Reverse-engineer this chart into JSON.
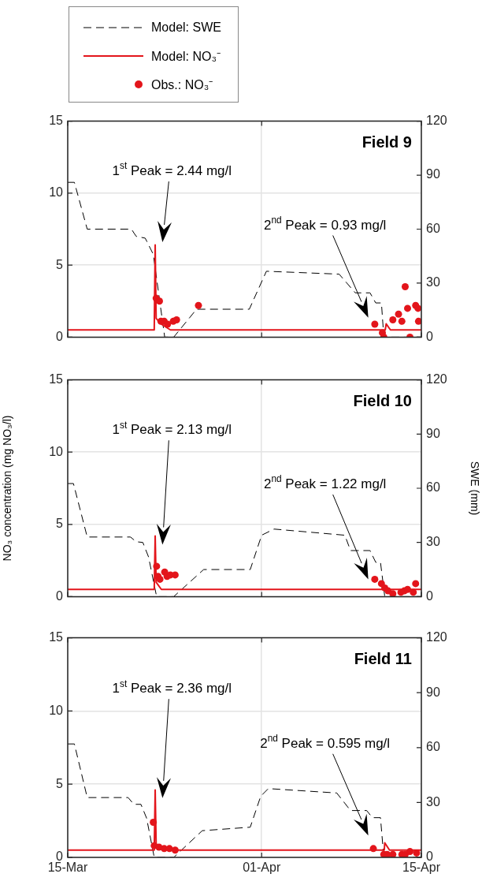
{
  "chart_data": [
    {
      "type": "line",
      "title": "Field 9",
      "legend": "top left",
      "grid": true,
      "tick_labels": "y",
      "xlim": [
        "--03-15",
        "--04-15"
      ],
      "xticks": [
        {
          "value": "--03-15",
          "label": "15-Mar"
        },
        {
          "value": "--04-01",
          "label": "01-Apr"
        },
        {
          "value": "--04-15",
          "label": "15-Apr"
        }
      ],
      "ylim": [
        0,
        15
      ],
      "yticks": [
        0,
        5,
        10,
        15
      ],
      "y2lim": [
        0,
        120
      ],
      "y2ticks": [
        0,
        30,
        60,
        90,
        120
      ],
      "series": [
        {
          "name": "Model: SWE",
          "type": "line",
          "axis": "y2",
          "color": "#000000",
          "line_style": "dashed",
          "x": [
            "--03-15",
            "--03-15T14:00",
            "--03-16T17:00",
            "--03-20T14:00",
            "--03-21T00:00",
            "--03-21T19:00",
            "--03-22T12:00",
            "--03-23T12:00",
            "--03-24T07:00",
            "--03-26T07:00",
            "--03-30T22:00",
            "--04-01T10:00",
            "--04-07T19:00",
            "--04-09T05:00",
            "--04-10T12:00",
            "--04-11T00:00",
            "--04-11T12:00",
            "--04-11T17:00",
            "--04-15"
          ],
          "values": [
            86,
            86,
            60,
            60,
            56,
            55,
            46,
            0,
            0,
            15.5,
            15.5,
            36.6,
            35,
            24.6,
            24.6,
            19,
            19,
            0,
            0
          ]
        },
        {
          "name": "Model: NO₃⁻",
          "type": "line",
          "color": "#e3151b",
          "line_style": "solid",
          "x": [
            "--03-15",
            "--03-22T14:00",
            "--03-22T16:00",
            "--03-22T18:00",
            "--03-23T05:00",
            "--03-24T00:00",
            "--04-11T20:00",
            "--04-11T22:00",
            "--04-12T07:00",
            "--04-15"
          ],
          "values": [
            0.5,
            0.5,
            6.4,
            1.3,
            0.9,
            0.5,
            0.5,
            0.92,
            0.5,
            0.5
          ]
        },
        {
          "name": "Obs.: NO₃⁻",
          "type": "scatter",
          "marker": "circle",
          "color": "#e3151b",
          "x": [
            "--03-22T18:00",
            "--03-23T01:00",
            "--03-23T04:00",
            "--03-23T11:00",
            "--03-23T18:00",
            "--03-24T06:00",
            "--03-24T13:00",
            "--03-26T11:00",
            "--04-10T22:00",
            "--04-11T14:00",
            "--04-11T17:00",
            "--04-12T12:00",
            "--04-13T00:00",
            "--04-13T07:00",
            "--04-13T14:00",
            "--04-13T19:00",
            "--04-14T00:00",
            "--04-14T12:00",
            "--04-14T17:00",
            "--04-14T18:00"
          ],
          "values": [
            2.7,
            2.5,
            1.1,
            1.1,
            0.9,
            1.1,
            1.2,
            2.2,
            0.9,
            0.3,
            0,
            1.2,
            1.6,
            1.1,
            3.5,
            2.0,
            0,
            2.2,
            2.0,
            1.1
          ]
        }
      ],
      "annotations": [
        "1$^{st}$ Peak = 2.44 mg/l",
        "2$^{nd}$ Peak = 0.93 mg/l"
      ]
    },
    {
      "type": "line",
      "title": "Field 10",
      "grid": true,
      "tick_labels": "y",
      "ylabel": "NO₃ concentration (mg NO₃/l)",
      "y2label": "SWE (mm)",
      "xlim": [
        "--03-15",
        "--04-15"
      ],
      "xticks": [
        {
          "value": "--03-15",
          "label": "15-Mar"
        },
        {
          "value": "--04-01",
          "label": "01-Apr"
        },
        {
          "value": "--04-15",
          "label": "15-Apr"
        }
      ],
      "ylim": [
        0,
        15
      ],
      "yticks": [
        0,
        5,
        10,
        15
      ],
      "y2lim": [
        0,
        120
      ],
      "y2ticks": [
        0,
        30,
        60,
        90,
        120
      ],
      "series": [
        {
          "type": "line",
          "axis": "y2",
          "color": "#000000",
          "line_style": "dashed",
          "x": [
            "--03-15",
            "--03-15T12:00",
            "--03-16T17:00",
            "--03-20T12:00",
            "--03-21T00:00",
            "--03-21T14:00",
            "--03-22T02:00",
            "--03-22T19:00",
            "--03-24T07:00",
            "--03-26T22:00",
            "--03-31T00:00",
            "--04-01T00:00",
            "--04-02T02:00",
            "--04-08T07:00",
            "--04-08T19:00",
            "--04-10T12:00",
            "--04-11T00:00",
            "--04-11T10:00",
            "--04-11T19:00",
            "--04-15"
          ],
          "values": [
            62.6,
            62.6,
            33,
            33,
            30.4,
            30,
            22,
            0,
            0,
            15,
            15,
            34,
            37.4,
            34,
            25.5,
            25.5,
            19,
            19,
            0,
            0
          ]
        },
        {
          "type": "line",
          "color": "#e3151b",
          "line_style": "solid",
          "x": [
            "--03-15",
            "--03-22T14:00",
            "--03-22T16:00",
            "--03-22T18:00",
            "--03-23T05:00",
            "--04-15"
          ],
          "values": [
            0.5,
            0.5,
            4.2,
            1.0,
            0.5,
            0.5
          ]
        },
        {
          "type": "scatter",
          "marker": "circle",
          "color": "#e3151b",
          "x": [
            "--03-22T19:00",
            "--03-22T22:00",
            "--03-23T02:00",
            "--03-23T12:00",
            "--03-23T17:00",
            "--03-24T00:00",
            "--03-24T10:00",
            "--04-10T22:00",
            "--04-11T12:00",
            "--04-11T19:00",
            "--04-12T02:00",
            "--04-12T12:00",
            "--04-13T05:00",
            "--04-13T12:00",
            "--04-13T19:00",
            "--04-14T07:00",
            "--04-14T12:00"
          ],
          "values": [
            2.1,
            1.4,
            1.2,
            1.7,
            1.4,
            1.5,
            1.5,
            1.2,
            0.9,
            0.6,
            0.4,
            0.2,
            0.3,
            0.4,
            0.5,
            0.3,
            0.9
          ]
        }
      ],
      "annotations": [
        "1$^{st}$ Peak = 2.13 mg/l",
        "2$^{nd}$ Peak = 1.22 mg/l"
      ]
    },
    {
      "type": "line",
      "title": "Field 11",
      "grid": true,
      "xlim": [
        "--03-15",
        "--04-15"
      ],
      "xticks": [
        {
          "value": "--03-15",
          "label": "15-Mar"
        },
        {
          "value": "--04-01",
          "label": "01-Apr"
        },
        {
          "value": "--04-15",
          "label": "15-Apr"
        }
      ],
      "ylim": [
        0,
        15
      ],
      "yticks": [
        0,
        5,
        10,
        15
      ],
      "y2lim": [
        0,
        120
      ],
      "y2ticks": [
        0,
        30,
        60,
        90,
        120
      ],
      "series": [
        {
          "type": "line",
          "axis": "y2",
          "color": "#000000",
          "line_style": "dashed",
          "x": [
            "--03-15",
            "--03-15T14:00",
            "--03-16T17:00",
            "--03-20T07:00",
            "--03-20T19:00",
            "--03-21T10:00",
            "--03-21T22:00",
            "--03-22T14:00",
            "--03-24T07:00",
            "--03-26T19:00",
            "--03-31T00:00",
            "--03-31T22:00",
            "--04-01T14:00",
            "--04-07T14:00",
            "--04-08T19:00",
            "--04-10T05:00",
            "--04-10T17:00",
            "--04-11T10:00",
            "--04-11T17:00",
            "--04-15"
          ],
          "values": [
            62,
            62,
            32.7,
            32.7,
            29,
            29,
            21.4,
            0,
            0,
            14.6,
            16.5,
            33.4,
            37.6,
            35.2,
            25.6,
            25.6,
            21.7,
            21.7,
            0,
            0
          ]
        },
        {
          "type": "line",
          "color": "#e3151b",
          "line_style": "solid",
          "x": [
            "--03-15",
            "--03-22T14:00",
            "--03-22T16:00",
            "--03-22T18:00",
            "--03-23T12:00",
            "--03-24T12:00",
            "--04-11T18:00",
            "--04-11T19:00",
            "--04-12T05:00",
            "--04-15"
          ],
          "values": [
            0.5,
            0.5,
            4.6,
            0.9,
            0.6,
            0.5,
            0.5,
            1.0,
            0.5,
            0.5
          ]
        },
        {
          "type": "scatter",
          "marker": "circle",
          "color": "#e3151b",
          "x": [
            "--03-22T12:00",
            "--03-22T14:00",
            "--03-23T00:00",
            "--03-23T11:00",
            "--03-23T22:00",
            "--03-24T10:00",
            "--04-10T19:00",
            "--04-11T17:00",
            "--04-12T00:00",
            "--04-12T12:00",
            "--04-13T07:00",
            "--04-13T14:00",
            "--04-14T00:00",
            "--04-14T14:00"
          ],
          "values": [
            2.4,
            0.8,
            0.7,
            0.6,
            0.6,
            0.5,
            0.6,
            0.2,
            0.2,
            0.2,
            0.2,
            0.2,
            0.4,
            0.3
          ]
        }
      ],
      "annotations": [
        "1$^{st}$ Peak = 2.36 mg/l",
        "2$^{nd}$ Peak = 0.595 mg/l"
      ]
    }
  ]
}
